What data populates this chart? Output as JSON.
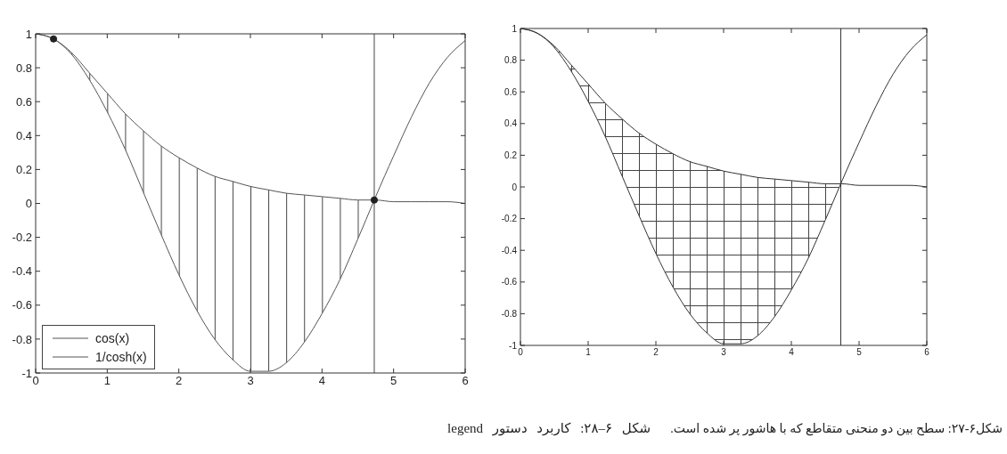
{
  "chart_data": [
    {
      "type": "line",
      "x": [
        0,
        0.25,
        0.5,
        0.75,
        1,
        1.25,
        1.5,
        1.75,
        2,
        2.25,
        2.5,
        2.75,
        3,
        3.25,
        3.5,
        3.75,
        4,
        4.25,
        4.5,
        4.73,
        4.75,
        5,
        5.25,
        5.5,
        5.75,
        6
      ],
      "series": [
        {
          "name": "cos(x)",
          "color": "#555555",
          "values": [
            1,
            0.97,
            0.88,
            0.73,
            0.54,
            0.32,
            0.07,
            -0.18,
            -0.42,
            -0.63,
            -0.8,
            -0.92,
            -0.99,
            -0.99,
            -0.94,
            -0.82,
            -0.65,
            -0.45,
            -0.21,
            0.02,
            0.04,
            0.28,
            0.51,
            0.71,
            0.86,
            0.96
          ],
          "lower": [
            1,
            0.97,
            0.88,
            0.73,
            0.54,
            0.32,
            0.07,
            -0.18,
            -0.42,
            -0.63,
            -0.8,
            -0.92,
            -0.99,
            -0.99,
            -0.94,
            -0.82,
            -0.65,
            -0.45,
            -0.21,
            0.02,
            null,
            null,
            null,
            null,
            null,
            null
          ],
          "upper": [
            1,
            0.97,
            0.89,
            0.77,
            0.65,
            0.53,
            0.43,
            0.34,
            0.27,
            0.21,
            0.16,
            0.13,
            0.1,
            0.08,
            0.06,
            0.05,
            0.04,
            0.03,
            0.02,
            0.02,
            null,
            null,
            null,
            null,
            null,
            null
          ]
        },
        {
          "name": "1/cosh(x)",
          "color": "#555555",
          "values": [
            1,
            0.97,
            0.89,
            0.77,
            0.65,
            0.53,
            0.43,
            0.34,
            0.27,
            0.21,
            0.16,
            0.13,
            0.1,
            0.08,
            0.06,
            0.05,
            0.04,
            0.03,
            0.02,
            0.02,
            0.02,
            0.01,
            0.01,
            0.01,
            0.01,
            0
          ]
        },
        {
          "type": "scatter",
          "x": [
            0.25,
            4.73
          ],
          "values": [
            0.97,
            0.02
          ],
          "color": "#222222",
          "marker": "circle"
        }
      ],
      "xlim": [
        0,
        6
      ],
      "xticks": [
        0,
        1,
        2,
        3,
        4,
        5,
        6
      ],
      "ylim": [
        -1,
        1
      ],
      "yticks": [
        -1,
        -0.8,
        -0.6,
        -0.4,
        -0.2,
        0,
        0.2,
        0.4,
        0.6,
        0.8,
        1
      ],
      "ref_lines": [
        {
          "axis": "x",
          "value": 4.73,
          "color": "#444444"
        }
      ],
      "legend": "bottom left",
      "annotations": [
        "شکل ۶–۲۸: کاربرد دستور legend"
      ]
    },
    {
      "type": "line",
      "x": [
        0,
        0.25,
        0.5,
        0.75,
        1,
        1.25,
        1.5,
        1.75,
        2,
        2.25,
        2.5,
        2.75,
        3,
        3.25,
        3.5,
        3.75,
        4,
        4.25,
        4.5,
        4.73,
        4.75,
        5,
        5.25,
        5.5,
        5.75,
        6
      ],
      "series": [
        {
          "color": "#333333",
          "values": [
            1,
            0.97,
            0.88,
            0.73,
            0.54,
            0.32,
            0.07,
            -0.18,
            -0.42,
            -0.63,
            -0.8,
            -0.92,
            -0.99,
            -0.99,
            -0.94,
            -0.82,
            -0.65,
            -0.45,
            -0.21,
            0.02,
            0.04,
            0.28,
            0.51,
            0.71,
            0.86,
            0.96
          ],
          "lower": [
            1,
            0.97,
            0.88,
            0.73,
            0.54,
            0.32,
            0.07,
            -0.18,
            -0.42,
            -0.63,
            -0.8,
            -0.92,
            -0.99,
            -0.99,
            -0.94,
            -0.82,
            -0.65,
            -0.45,
            -0.21,
            0.02,
            null,
            null,
            null,
            null,
            null,
            null
          ],
          "upper": [
            1,
            0.97,
            0.89,
            0.77,
            0.65,
            0.53,
            0.43,
            0.34,
            0.27,
            0.21,
            0.16,
            0.13,
            0.1,
            0.08,
            0.06,
            0.05,
            0.04,
            0.03,
            0.02,
            0.02,
            null,
            null,
            null,
            null,
            null,
            null
          ]
        },
        {
          "color": "#333333",
          "values": [
            1,
            0.97,
            0.89,
            0.77,
            0.65,
            0.53,
            0.43,
            0.34,
            0.27,
            0.21,
            0.16,
            0.13,
            0.1,
            0.08,
            0.06,
            0.05,
            0.04,
            0.03,
            0.02,
            0.02,
            0.02,
            0.01,
            0.01,
            0.01,
            0.01,
            0
          ]
        }
      ],
      "xlim": [
        0,
        6
      ],
      "xticks": [
        0,
        1,
        2,
        3,
        4,
        5,
        6
      ],
      "ylim": [
        -1,
        1
      ],
      "yticks": [
        -1,
        -0.8,
        -0.6,
        -0.4,
        -0.2,
        0,
        0.2,
        0.4,
        0.6,
        0.8,
        1
      ],
      "ref_lines": [
        {
          "axis": "x",
          "value": 4.73,
          "color": "#333333"
        }
      ],
      "annotations": [
        "شکل۶-۲۷: سطح بین دو منحنی متقاطع که با هاشور پر شده است."
      ]
    }
  ]
}
